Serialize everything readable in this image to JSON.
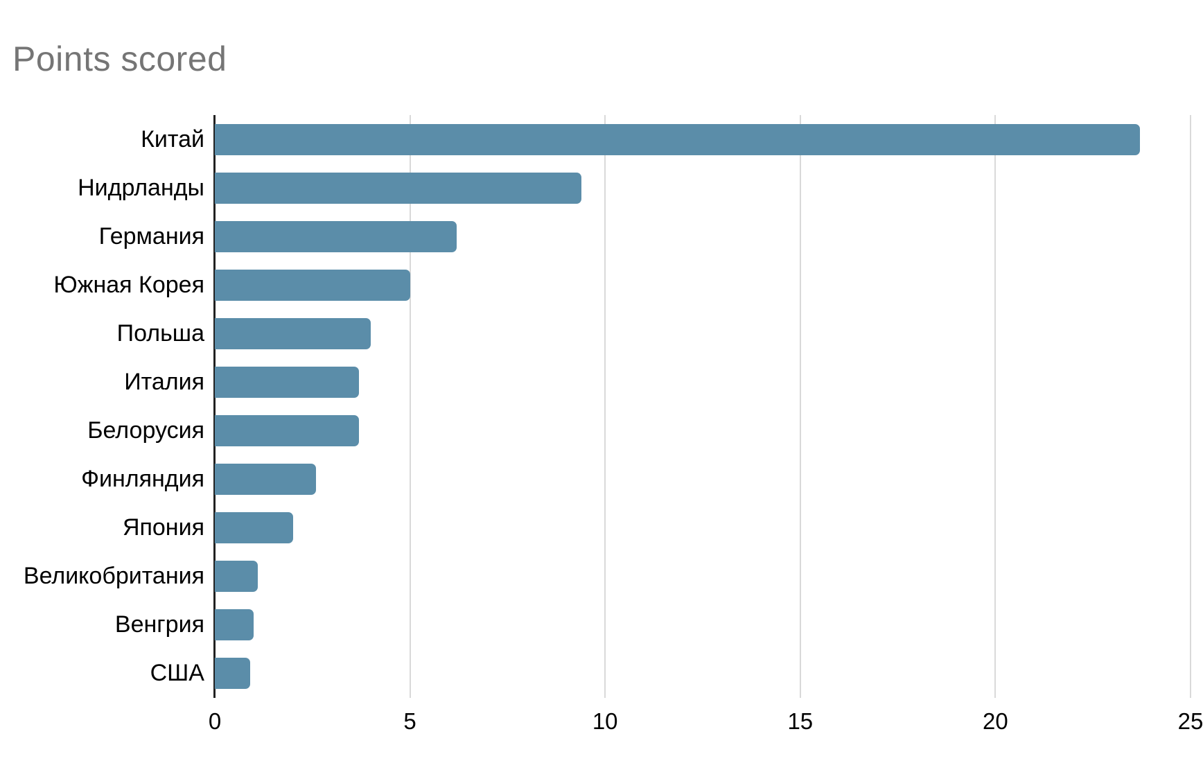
{
  "chart_data": {
    "type": "bar",
    "orientation": "horizontal",
    "title": "Points scored",
    "categories": [
      "Китай",
      "Нидрланды",
      "Германия",
      "Южная Корея",
      "Польша",
      "Италия",
      "Белорусия",
      "Финляндия",
      "Япония",
      "Великобритания",
      "Венгрия",
      "США"
    ],
    "values": [
      23.7,
      9.4,
      6.2,
      5,
      4,
      3.7,
      3.7,
      2.6,
      2,
      1.1,
      1,
      0.9
    ],
    "xlabel": "",
    "ylabel": "",
    "xlim": [
      0,
      25
    ],
    "x_ticks": [
      0,
      5,
      10,
      15,
      20,
      25
    ],
    "grid": "vertical",
    "legend": "none",
    "colors": {
      "bar": "#5B8DA9",
      "gridline": "#D9D9D9",
      "axis": "#212121",
      "title": "#757575",
      "tick_label": "#000000",
      "category_label": "#000000",
      "background": "#FFFFFF"
    }
  }
}
